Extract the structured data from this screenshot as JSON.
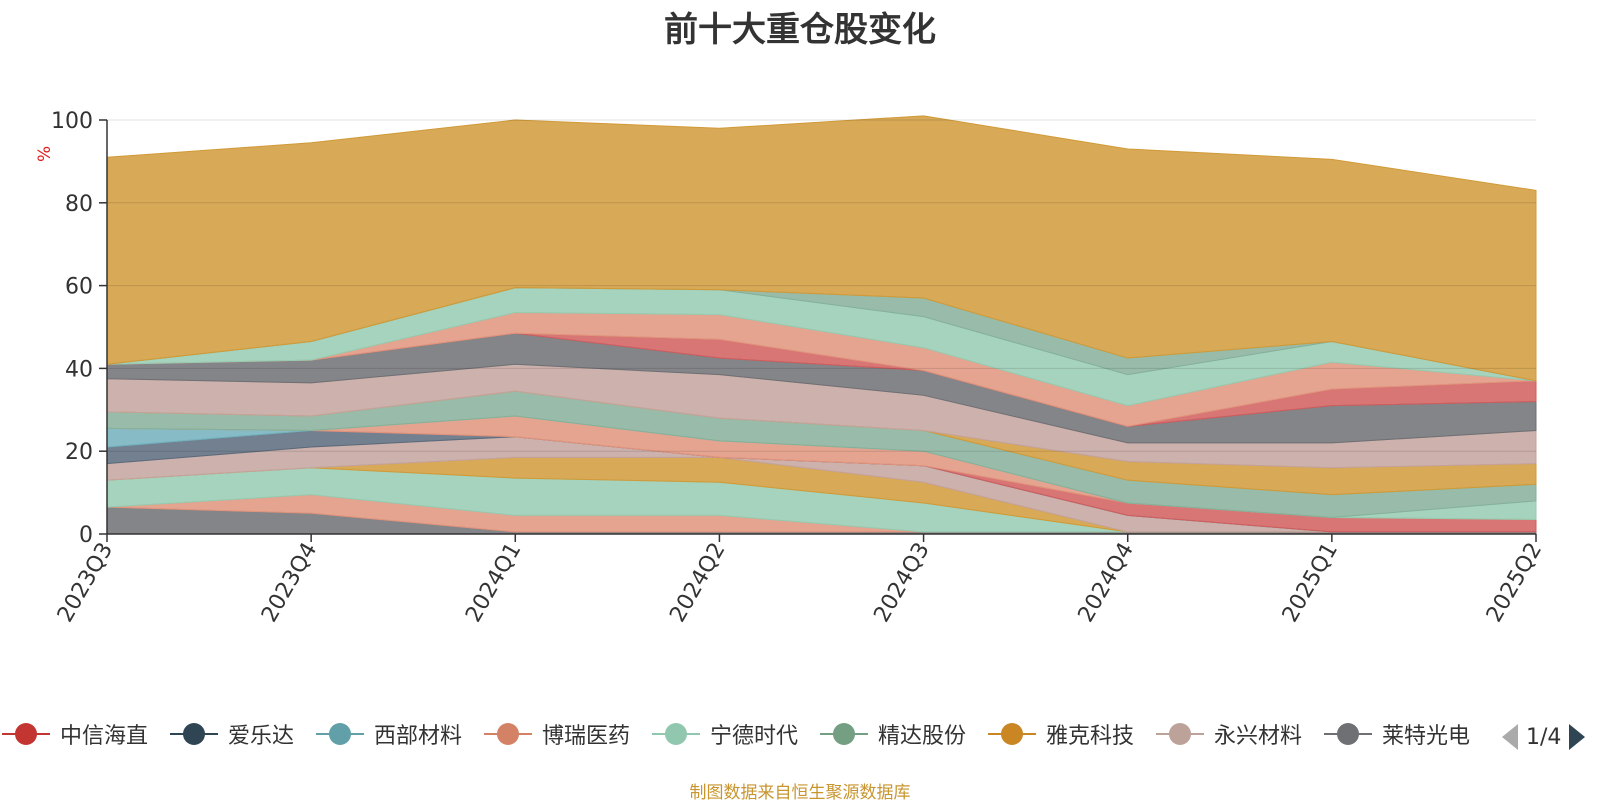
{
  "chart_data": {
    "type": "area",
    "stacked": true,
    "title": "前十大重仓股变化",
    "ylabel": "%",
    "ylim": [
      0,
      100
    ],
    "yticks": [
      0,
      20,
      40,
      60,
      80,
      100
    ],
    "categories": [
      "2023Q3",
      "2023Q4",
      "2024Q1",
      "2024Q2",
      "2024Q3",
      "2024Q4",
      "2025Q1",
      "2025Q2"
    ],
    "legend_position": "bottom",
    "grid": true,
    "series": [
      {
        "name": "莱特光电",
        "color": "#6e7074",
        "values": [
          6.5,
          5,
          0.5,
          0.5,
          0.5,
          0.5,
          0.5,
          0.5
        ]
      },
      {
        "name": "博瑞医药",
        "color": "#e0947c",
        "values": [
          0,
          4.5,
          4,
          4,
          0,
          0,
          0,
          0
        ]
      },
      {
        "name": "宁德时代",
        "color": "#96cbb1",
        "values": [
          6.5,
          6.5,
          9,
          8,
          7,
          0,
          0,
          0
        ]
      },
      {
        "name": "雅克科技",
        "color": "#d19a38",
        "values": [
          0,
          0,
          5,
          6,
          5,
          0,
          0,
          0
        ]
      },
      {
        "name": "永兴材料",
        "color": "#c4a39e",
        "values": [
          4,
          5,
          5,
          0,
          4,
          4,
          0,
          0
        ]
      },
      {
        "name": "爱乐达",
        "color": "#5a6a7c",
        "values": [
          4,
          4,
          0,
          0,
          0,
          0,
          0,
          0
        ]
      },
      {
        "name": "西部材料",
        "color": "#72b0bd",
        "values": [
          4.5,
          0,
          0,
          0,
          0,
          0,
          0,
          0
        ]
      },
      {
        "name": "中信海直",
        "color": "#d15d5d",
        "values": [
          0,
          0,
          0,
          0,
          0,
          3,
          3.5,
          3
        ]
      },
      {
        "name": "博瑞医药",
        "color": "#e0947c",
        "values": [
          0,
          0,
          5,
          4,
          3.5,
          0,
          0,
          0
        ]
      },
      {
        "name": "宁德时代",
        "color": "#96cbb1",
        "values": [
          0,
          0,
          0,
          0,
          0,
          0,
          0,
          4.5
        ]
      },
      {
        "name": "精达股份",
        "color": "#86b09a",
        "values": [
          4,
          3.5,
          6,
          5.5,
          5,
          5.5,
          5.5,
          4
        ]
      },
      {
        "name": "雅克科技",
        "color": "#d19a38",
        "values": [
          0,
          0,
          0,
          0,
          0,
          4.5,
          6.5,
          5
        ]
      },
      {
        "name": "永兴材料",
        "color": "#c4a39e",
        "values": [
          8,
          8,
          6.5,
          10.5,
          8.5,
          4.5,
          6,
          8
        ]
      },
      {
        "name": "莱特光电",
        "color": "#6e7074",
        "values": [
          3.5,
          5.5,
          7.5,
          4,
          6,
          4,
          9,
          7
        ]
      },
      {
        "name": "中信海直",
        "color": "#d15d5d",
        "values": [
          0,
          0,
          0,
          4.5,
          0,
          0,
          4,
          5
        ]
      },
      {
        "name": "博瑞医药",
        "color": "#e0947c",
        "values": [
          0,
          0,
          5,
          6,
          5.5,
          5,
          6.5,
          0
        ]
      },
      {
        "name": "宁德时代",
        "color": "#96cbb1",
        "values": [
          0,
          4.5,
          6,
          6,
          7.5,
          7.5,
          5,
          0
        ]
      },
      {
        "name": "精达股份",
        "color": "#86b09a",
        "values": [
          0,
          0,
          0,
          0,
          4.5,
          4,
          0,
          0
        ]
      },
      {
        "name": "雅克科技",
        "color": "#d19a38",
        "values": [
          50,
          48,
          40.5,
          39,
          44,
          50.5,
          44,
          46
        ]
      }
    ]
  },
  "legend": {
    "items": [
      {
        "name": "中信海直",
        "color": "#c23531"
      },
      {
        "name": "爱乐达",
        "color": "#2f4554"
      },
      {
        "name": "西部材料",
        "color": "#61a0a8"
      },
      {
        "name": "博瑞医药",
        "color": "#d48265"
      },
      {
        "name": "宁德时代",
        "color": "#91c7ae"
      },
      {
        "name": "精达股份",
        "color": "#749f83"
      },
      {
        "name": "雅克科技",
        "color": "#ca8622"
      },
      {
        "name": "永兴材料",
        "color": "#bda29a"
      },
      {
        "name": "莱特光电",
        "color": "#6e7074"
      }
    ],
    "page": "1/4"
  },
  "source_note": "制图数据来自恒生聚源数据库"
}
